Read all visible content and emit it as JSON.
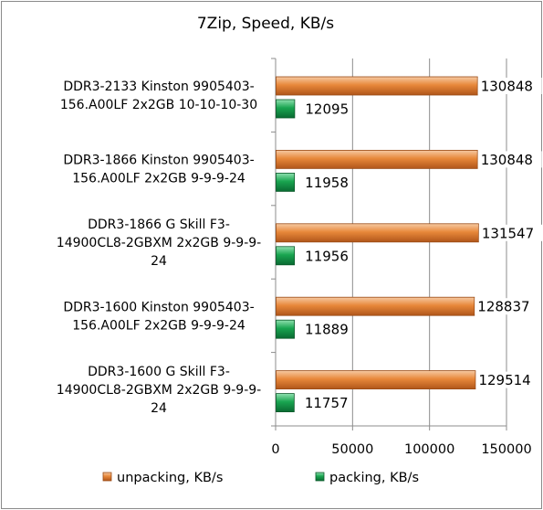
{
  "chart_data": {
    "type": "bar",
    "orientation": "horizontal",
    "title": "7Zip, Speed, KB/s",
    "categories": [
      [
        "DDR3-2133 Kinston 9905403-",
        "156.A00LF 2x2GB 10-10-10-30"
      ],
      [
        "DDR3-1866 Kinston 9905403-",
        "156.A00LF 2x2GB 9-9-9-24"
      ],
      [
        "DDR3-1866 G Skill F3-",
        "14900CL8-2GBXM 2x2GB 9-9-9-",
        "24"
      ],
      [
        "DDR3-1600 Kinston 9905403-",
        "156.A00LF 2x2GB 9-9-9-24"
      ],
      [
        "DDR3-1600 G Skill F3-",
        "14900CL8-2GBXM 2x2GB 9-9-9-",
        "24"
      ]
    ],
    "series": [
      {
        "name": "unpacking, KB/s",
        "color": "#e8883a",
        "values": [
          130848,
          130848,
          131547,
          128837,
          129514
        ]
      },
      {
        "name": "packing, KB/s",
        "color": "#19a550",
        "values": [
          12095,
          11958,
          11956,
          11889,
          11757
        ]
      }
    ],
    "xlim": [
      0,
      150000
    ],
    "xticks": [
      0,
      50000,
      100000,
      150000
    ],
    "xtick_labels": [
      "0",
      "50000",
      "100000",
      "150000"
    ],
    "grid": true,
    "legend_position": "bottom"
  }
}
